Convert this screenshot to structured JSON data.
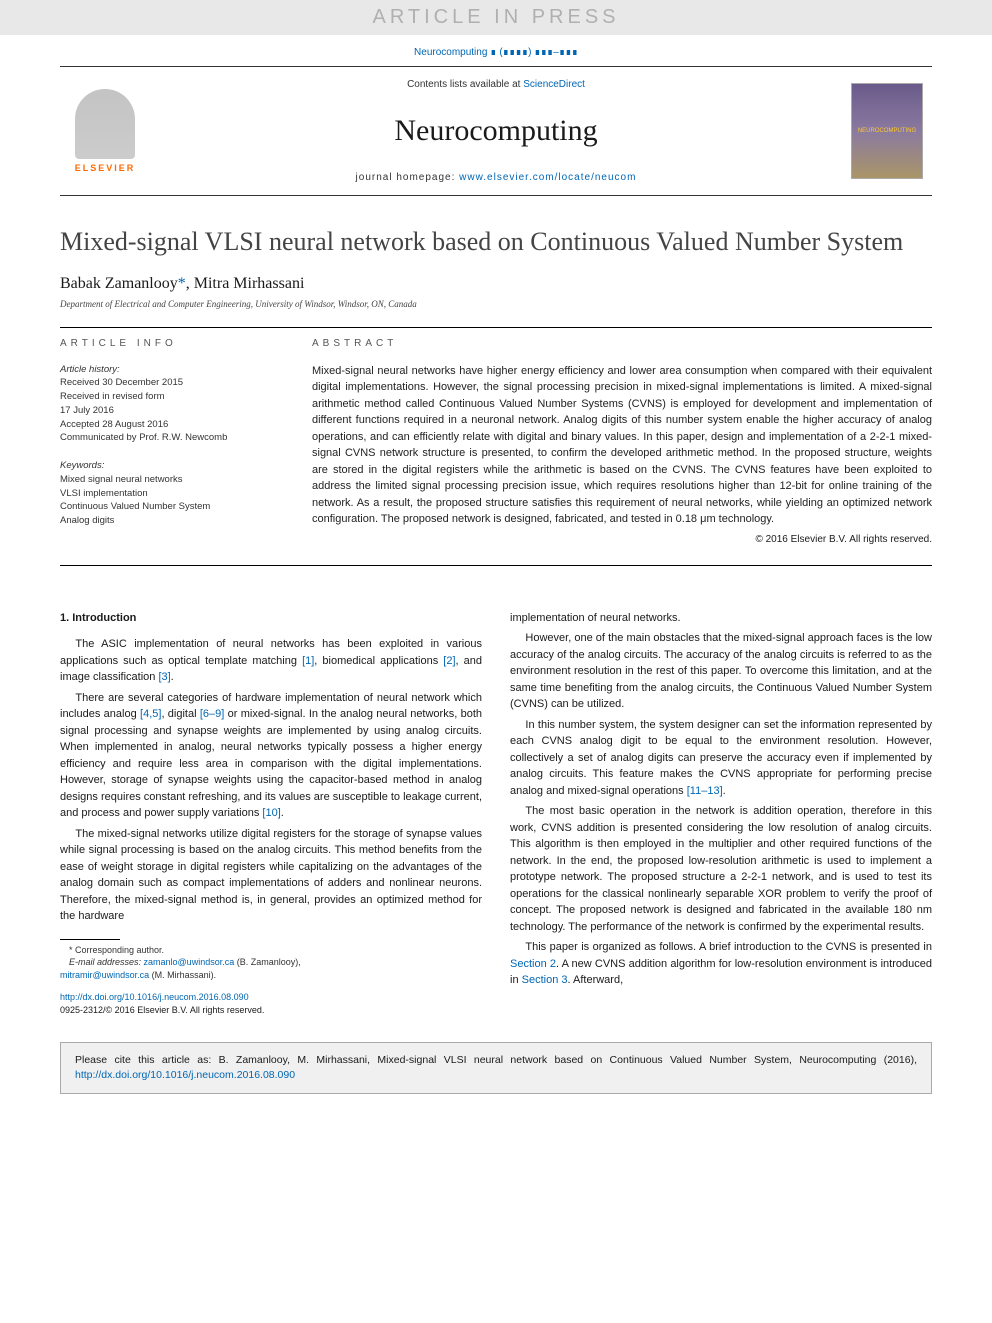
{
  "watermark": "ARTICLE IN PRESS",
  "citation_header": "Neurocomputing ∎ (∎∎∎∎) ∎∎∎–∎∎∎",
  "header": {
    "contents_prefix": "Contents lists available at ",
    "contents_link": "ScienceDirect",
    "journal_title": "Neurocomputing",
    "homepage_prefix": "journal homepage: ",
    "homepage_url": "www.elsevier.com/locate/neucom",
    "publisher_brand": "ELSEVIER",
    "cover_text": "NEUROCOMPUTING"
  },
  "article": {
    "title": "Mixed-signal VLSI neural network based on Continuous Valued Number System",
    "authors_html": "Babak Zamanlooy",
    "corr_mark": "*",
    "author2": ", Mitra Mirhassani",
    "affiliation": "Department of Electrical and Computer Engineering, University of Windsor, Windsor, ON, Canada"
  },
  "info": {
    "section_label": "ARTICLE INFO",
    "history_label": "Article history:",
    "received": "Received 30 December 2015",
    "revised1": "Received in revised form",
    "revised2": "17 July 2016",
    "accepted": "Accepted 28 August 2016",
    "communicated": "Communicated by Prof. R.W. Newcomb",
    "keywords_label": "Keywords:",
    "kw1": "Mixed signal neural networks",
    "kw2": "VLSI implementation",
    "kw3": "Continuous Valued Number System",
    "kw4": "Analog digits"
  },
  "abstract": {
    "section_label": "ABSTRACT",
    "text": "Mixed-signal neural networks have higher energy efficiency and lower area consumption when compared with their equivalent digital implementations. However, the signal processing precision in mixed-signal implementations is limited. A mixed-signal arithmetic method called Continuous Valued Number Systems (CVNS) is employed for development and implementation of different functions required in a neuronal network. Analog digits of this number system enable the higher accuracy of analog operations, and can efficiently relate with digital and binary values. In this paper, design and implementation of a 2-2-1 mixed-signal CVNS network structure is presented, to confirm the developed arithmetic method. In the proposed structure, weights are stored in the digital registers while the arithmetic is based on the CVNS. The CVNS features have been exploited to address the limited signal processing precision issue, which requires resolutions higher than 12-bit for online training of the network. As a result, the proposed structure satisfies this requirement of neural networks, while yielding an optimized network configuration. The proposed network is designed, fabricated, and tested in 0.18 μm technology.",
    "copyright": "© 2016 Elsevier B.V. All rights reserved."
  },
  "body": {
    "intro_heading": "1.  Introduction",
    "c1p1a": "The ASIC implementation of neural networks has been exploited in various applications such as optical template matching ",
    "c1p1_ref1": "[1]",
    "c1p1b": ", biomedical applications ",
    "c1p1_ref2": "[2]",
    "c1p1c": ", and image classification ",
    "c1p1_ref3": "[3]",
    "c1p1d": ".",
    "c1p2a": "There are several categories of hardware implementation of neural network which includes analog ",
    "c1p2_ref1": "[4,5]",
    "c1p2b": ", digital ",
    "c1p2_ref2": "[6–9]",
    "c1p2c": " or mixed-signal. In the analog neural networks, both signal processing and synapse weights are implemented by using analog circuits. When implemented in analog, neural networks typically possess a higher energy efficiency and require less area in comparison with the digital implementations. However, storage of synapse weights using the capacitor-based method in analog designs requires constant refreshing, and its values are susceptible to leakage current, and process and power supply variations ",
    "c1p2_ref3": "[10]",
    "c1p2d": ".",
    "c1p3": "The mixed-signal networks utilize digital registers for the storage of synapse values while signal processing is based on the analog circuits. This method benefits from the ease of weight storage in digital registers while capitalizing on the advantages of the analog domain such as compact implementations of adders and nonlinear neurons. Therefore, the mixed-signal method is, in general, provides an optimized method for the hardware",
    "c2p1": "implementation of neural networks.",
    "c2p2": "However, one of the main obstacles that the mixed-signal approach faces is the low accuracy of the analog circuits. The accuracy of the analog circuits is referred to as the environment resolution in the rest of this paper. To overcome this limitation, and at the same time benefiting from the analog circuits, the Continuous Valued Number System (CVNS) can be utilized.",
    "c2p3a": "In this number system, the system designer can set the information represented by each CVNS analog digit to be equal to the environment resolution. However, collectively a set of analog digits can preserve the accuracy even if implemented by analog circuits. This feature makes the CVNS appropriate for performing precise analog and mixed-signal operations ",
    "c2p3_ref1": "[11–13]",
    "c2p3b": ".",
    "c2p4": "The most basic operation in the network is addition operation, therefore in this work, CVNS addition is presented considering the low resolution of analog circuits. This algorithm is then employed in the multiplier and other required functions of the network. In the end, the proposed low-resolution arithmetic is used to implement a prototype network. The proposed structure a 2-2-1 network, and is used to test its operations for the classical nonlinearly separable XOR problem to verify the proof of concept. The proposed network is designed and fabricated in the available 180 nm technology. The performance of the network is confirmed by the experimental results.",
    "c2p5a": "This paper is organized as follows. A brief introduction to the CVNS is presented in ",
    "c2p5_ref1": "Section 2",
    "c2p5b": ". A new CVNS addition algorithm for low-resolution environment is introduced in ",
    "c2p5_ref2": "Section 3",
    "c2p5c": ". Afterward,"
  },
  "footnotes": {
    "corr": "* Corresponding author.",
    "email_label": "E-mail addresses: ",
    "email1": "zamanlo@uwindsor.ca",
    "email1_who": " (B. Zamanlooy),",
    "email2": "mitramir@uwindsor.ca",
    "email2_who": " (M. Mirhassani)."
  },
  "doi": {
    "url": "http://dx.doi.org/10.1016/j.neucom.2016.08.090",
    "issn": "0925-2312/© 2016 Elsevier B.V. All rights reserved."
  },
  "citation_box": {
    "prefix": "Please cite this article as: B. Zamanlooy, M. Mirhassani, Mixed-signal VLSI neural network based on Continuous Valued Number System, Neurocomputing (2016), ",
    "link": "http://dx.doi.org/10.1016/j.neucom.2016.08.090"
  },
  "colors": {
    "link": "#0066b3",
    "watermark_bg": "#e8e8e8",
    "watermark_text": "#b0b0b0",
    "publisher_orange": "#ff6a00",
    "citation_bg": "#f0f0f0"
  }
}
